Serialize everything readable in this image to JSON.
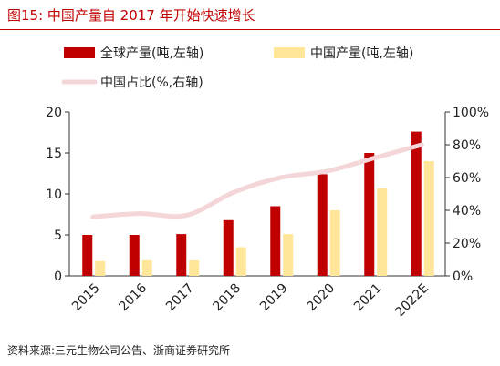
{
  "figure": {
    "title": "图15:  中国产量自 2017 年开始快速增长",
    "source": "资料来源:三元生物公司公告、浙商证券研究所"
  },
  "colors": {
    "global": "#c00000",
    "china": "#ffe699",
    "share": "#f4d6d8",
    "title": "#c00000"
  },
  "chart_data": {
    "type": "bar",
    "categories": [
      "2015",
      "2016",
      "2017",
      "2018",
      "2019",
      "2020",
      "2021",
      "2022E"
    ],
    "series": [
      {
        "name": "全球产量(吨,左轴)",
        "type": "bar",
        "axis": "left",
        "values": [
          5.0,
          5.0,
          5.1,
          6.8,
          8.5,
          12.4,
          15.0,
          17.6
        ]
      },
      {
        "name": "中国产量(吨,左轴)",
        "type": "bar",
        "axis": "left",
        "values": [
          1.8,
          1.9,
          1.9,
          3.5,
          5.1,
          8.0,
          10.7,
          14.0
        ]
      },
      {
        "name": "中国占比(%,右轴)",
        "type": "line",
        "axis": "right",
        "values": [
          36,
          38,
          37,
          51,
          60,
          64,
          72,
          80
        ]
      }
    ],
    "y_left": {
      "ylim": [
        0,
        20
      ],
      "ticks": [
        "0",
        "5",
        "10",
        "15",
        "20"
      ]
    },
    "y_right": {
      "ylim": [
        0,
        100
      ],
      "ticks": [
        "0%",
        "20%",
        "40%",
        "60%",
        "80%",
        "100%"
      ]
    },
    "grid": false,
    "legend_position": "top-left"
  }
}
